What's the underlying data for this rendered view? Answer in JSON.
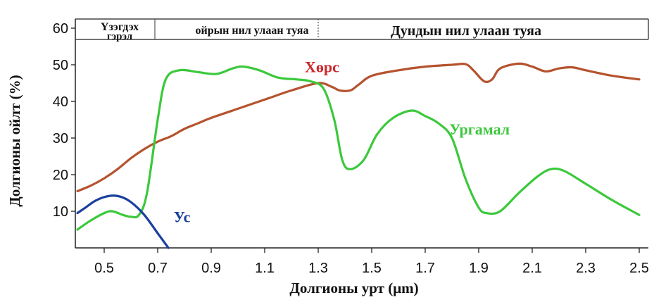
{
  "chart_data": {
    "type": "line",
    "xlabel": "Долгионы урт (μm)",
    "ylabel": "Долгионы ойлт (%)",
    "xlim": [
      0.4,
      2.5
    ],
    "ylim": [
      0,
      60
    ],
    "xticks": [
      "0.5",
      "0.7",
      "0.9",
      "1.1",
      "1.3",
      "1.5",
      "1.7",
      "1.9",
      "2.1",
      "2.3",
      "2.5"
    ],
    "yticks": [
      "10",
      "20",
      "30",
      "40",
      "50",
      "60"
    ],
    "bands": [
      {
        "label_line1": "Үзэгдэх",
        "label_line2": "гэрэл",
        "from": 0.4,
        "to": 0.7
      },
      {
        "label": "ойрын нил улаан туяа",
        "from": 0.7,
        "to": 1.3
      },
      {
        "label": "Дундын нил улаан туяа",
        "from": 1.3,
        "to": 2.5
      }
    ],
    "series": [
      {
        "name": "Хөрс",
        "color": "#b5532e",
        "points": [
          [
            0.4,
            15.5
          ],
          [
            0.45,
            17
          ],
          [
            0.5,
            19
          ],
          [
            0.55,
            21.5
          ],
          [
            0.6,
            24.5
          ],
          [
            0.65,
            27
          ],
          [
            0.7,
            29
          ],
          [
            0.75,
            30.5
          ],
          [
            0.8,
            32.5
          ],
          [
            0.85,
            34
          ],
          [
            0.9,
            35.5
          ],
          [
            1.0,
            38
          ],
          [
            1.1,
            40.5
          ],
          [
            1.2,
            43
          ],
          [
            1.3,
            45
          ],
          [
            1.35,
            44
          ],
          [
            1.38,
            43
          ],
          [
            1.42,
            43
          ],
          [
            1.45,
            44.5
          ],
          [
            1.5,
            47
          ],
          [
            1.6,
            48.5
          ],
          [
            1.7,
            49.5
          ],
          [
            1.8,
            50
          ],
          [
            1.85,
            50.2
          ],
          [
            1.88,
            48.5
          ],
          [
            1.92,
            45.5
          ],
          [
            1.95,
            46
          ],
          [
            1.98,
            49
          ],
          [
            2.05,
            50.3
          ],
          [
            2.1,
            49.5
          ],
          [
            2.15,
            48.2
          ],
          [
            2.2,
            49
          ],
          [
            2.25,
            49.3
          ],
          [
            2.3,
            48.5
          ],
          [
            2.4,
            47
          ],
          [
            2.5,
            46
          ]
        ]
      },
      {
        "name": "Ургамал",
        "color": "#3cc83c",
        "points": [
          [
            0.4,
            5
          ],
          [
            0.45,
            7.5
          ],
          [
            0.5,
            9.5
          ],
          [
            0.53,
            10
          ],
          [
            0.57,
            9
          ],
          [
            0.6,
            8.5
          ],
          [
            0.63,
            9
          ],
          [
            0.66,
            15
          ],
          [
            0.7,
            35
          ],
          [
            0.73,
            46
          ],
          [
            0.78,
            48.5
          ],
          [
            0.85,
            48
          ],
          [
            0.92,
            47.5
          ],
          [
            0.98,
            49
          ],
          [
            1.02,
            49.5
          ],
          [
            1.08,
            48.5
          ],
          [
            1.15,
            46.5
          ],
          [
            1.22,
            46
          ],
          [
            1.27,
            45.5
          ],
          [
            1.32,
            43.5
          ],
          [
            1.36,
            35
          ],
          [
            1.39,
            24
          ],
          [
            1.42,
            21.5
          ],
          [
            1.47,
            24
          ],
          [
            1.52,
            31
          ],
          [
            1.58,
            35.5
          ],
          [
            1.65,
            37.5
          ],
          [
            1.7,
            36
          ],
          [
            1.75,
            34
          ],
          [
            1.8,
            30
          ],
          [
            1.85,
            19
          ],
          [
            1.9,
            11
          ],
          [
            1.93,
            9.5
          ],
          [
            1.98,
            10
          ],
          [
            2.05,
            15
          ],
          [
            2.12,
            19.5
          ],
          [
            2.17,
            21.5
          ],
          [
            2.22,
            21
          ],
          [
            2.3,
            17.5
          ],
          [
            2.4,
            13
          ],
          [
            2.5,
            9
          ]
        ]
      },
      {
        "name": "Ус",
        "color": "#1a3f9e",
        "points": [
          [
            0.4,
            9.5
          ],
          [
            0.43,
            11
          ],
          [
            0.47,
            13
          ],
          [
            0.52,
            14.2
          ],
          [
            0.56,
            14
          ],
          [
            0.6,
            12.5
          ],
          [
            0.65,
            9
          ],
          [
            0.7,
            4
          ],
          [
            0.74,
            0
          ]
        ]
      }
    ],
    "labels": [
      {
        "series": "Хөрс",
        "text": "Хөрс",
        "color": "#c9282b",
        "x": 1.25,
        "y": 48
      },
      {
        "series": "Ургамал",
        "text": "Ургамал",
        "color": "#3cc83c",
        "x": 1.79,
        "y": 31
      },
      {
        "series": "Ус",
        "text": "Ус",
        "color": "#1a3f9e",
        "x": 0.76,
        "y": 7
      }
    ],
    "grid": false,
    "legend": "none"
  }
}
